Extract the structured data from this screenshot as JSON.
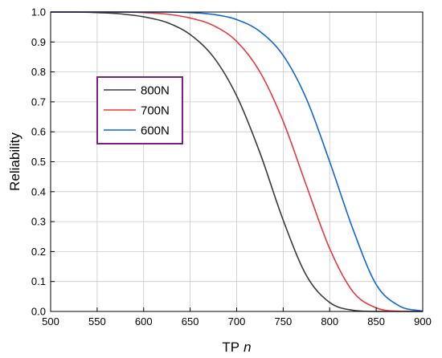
{
  "chart_data": {
    "type": "line",
    "xlabel": "TP",
    "xlabel_italic": "n",
    "ylabel": "Reliability",
    "xlim": [
      500,
      900
    ],
    "ylim": [
      0,
      1
    ],
    "x_ticks": [
      "500",
      "550",
      "600",
      "650",
      "700",
      "750",
      "800",
      "850",
      "900"
    ],
    "y_ticks": [
      "0.0",
      "0.1",
      "0.2",
      "0.3",
      "0.4",
      "0.5",
      "0.6",
      "0.7",
      "0.8",
      "0.9",
      "1.0"
    ],
    "grid": true,
    "legend_position": "upper-left",
    "legend_border_color": "#7b1f86",
    "x": [
      500,
      525,
      550,
      575,
      600,
      625,
      650,
      675,
      700,
      725,
      750,
      775,
      800,
      825,
      850,
      875,
      900
    ],
    "series": [
      {
        "name": "800N",
        "color": "#3a3a3a",
        "values": [
          1.0,
          1.0,
          0.998,
          0.994,
          0.984,
          0.965,
          0.925,
          0.85,
          0.72,
          0.53,
          0.305,
          0.12,
          0.03,
          0.004,
          0.0,
          0.0,
          0.0
        ]
      },
      {
        "name": "700N",
        "color": "#e8383a",
        "values": [
          1.0,
          1.0,
          1.0,
          1.0,
          0.998,
          0.993,
          0.98,
          0.955,
          0.902,
          0.8,
          0.635,
          0.42,
          0.21,
          0.066,
          0.012,
          0.001,
          0.0
        ]
      },
      {
        "name": "600N",
        "color": "#1166d6",
        "values": [
          1.0,
          1.0,
          1.0,
          1.0,
          1.0,
          1.0,
          0.998,
          0.992,
          0.975,
          0.935,
          0.855,
          0.71,
          0.5,
          0.275,
          0.09,
          0.018,
          0.001
        ]
      }
    ]
  }
}
